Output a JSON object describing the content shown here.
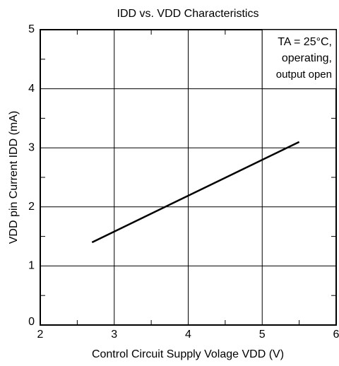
{
  "chart_data": {
    "type": "line",
    "title": "IDD vs. VDD Characteristics",
    "x_label": "Control Circuit Supply Volage VDD (V)",
    "y_label": "VDD pin Current IDD (mA)",
    "annotation": [
      "TA = 25°C,",
      "operating,",
      "output open"
    ],
    "series": [
      {
        "color": "#000000",
        "x": [
          2.7,
          5.5
        ],
        "values": [
          1.4,
          3.1
        ]
      }
    ],
    "xlim": [
      2,
      6
    ],
    "xticks": [
      2,
      3,
      4,
      5,
      6
    ],
    "xminor": [
      2.5,
      3.5,
      4.5,
      5.5
    ],
    "ylim": [
      0,
      5
    ],
    "yticks": [
      0,
      1,
      2,
      3,
      4,
      5
    ],
    "yminor": [
      0.5,
      1.5,
      2.5,
      3.5,
      4.5
    ],
    "grid": true
  }
}
